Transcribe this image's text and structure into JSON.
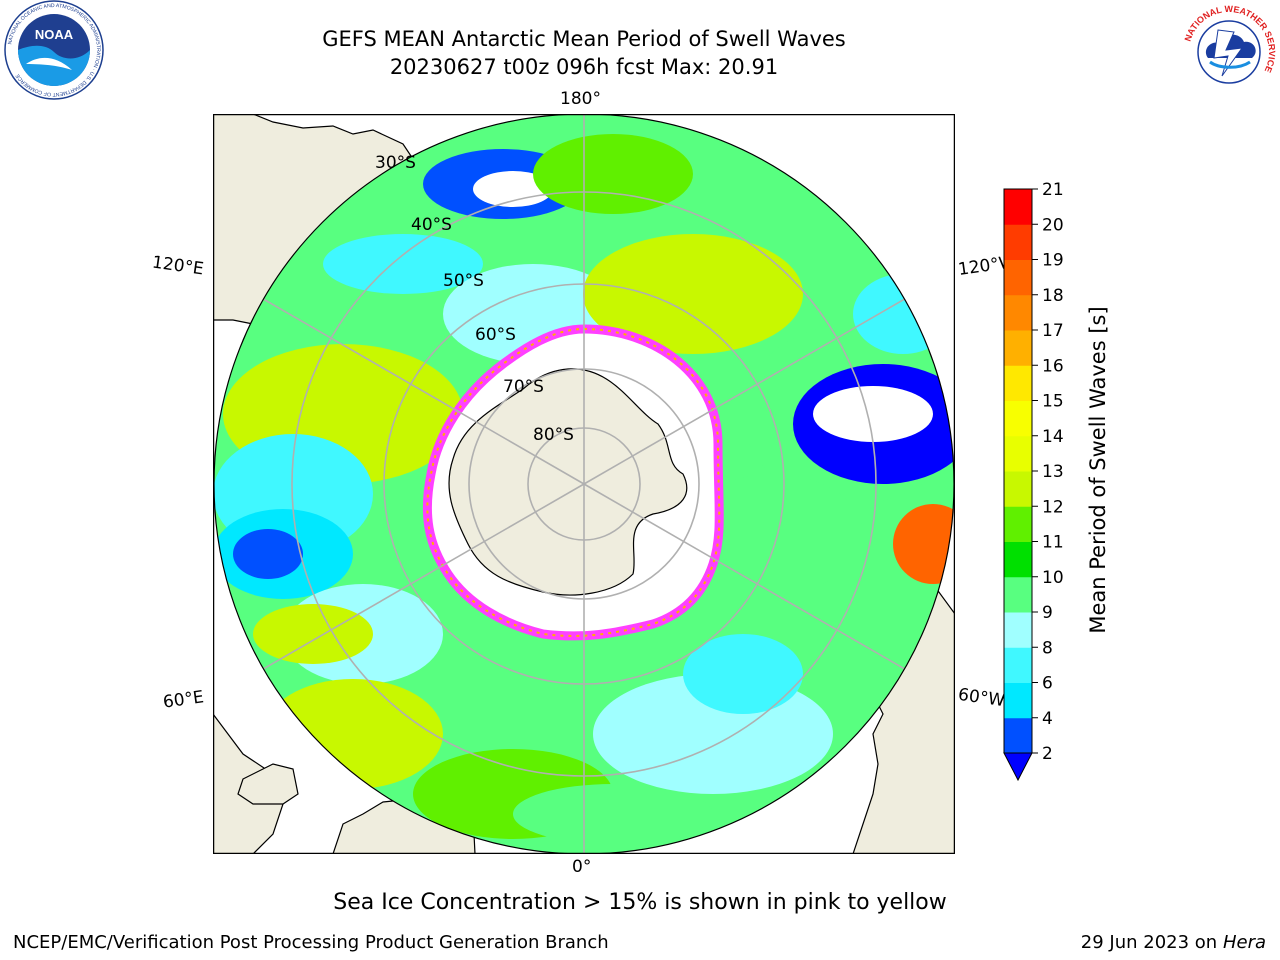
{
  "title_line1": "GEFS MEAN Antarctic Mean Period of Swell Waves",
  "title_line2": "20230627 t00z 096h fcst   Max: 20.91",
  "logos": {
    "noaa": {
      "text": "NOAA",
      "ring_text": "NATIONAL OCEANIC AND ATMOSPHERIC ADMINISTRATION · U.S. DEPARTMENT OF COMMERCE"
    },
    "nws": {
      "ring_text": "NATIONAL WEATHER SERVICE"
    }
  },
  "map": {
    "projection": "south-polar-stereographic",
    "longitude_labels": {
      "top": "180°",
      "bottom": "0°",
      "upper_left": "120°E",
      "upper_right": "120°W",
      "lower_left": "60°E",
      "lower_right": "60°W"
    },
    "latitude_labels": [
      "30°S",
      "40°S",
      "50°S",
      "60°S",
      "70°S",
      "80°S"
    ],
    "colors": {
      "land": "#efedde",
      "ocean_mid": "#5cff84",
      "grid": "#b0b0b0"
    }
  },
  "colorbar": {
    "label": "Mean Period of Swell Waves [s]",
    "ticks": [
      "2",
      "4",
      "6",
      "8",
      "9",
      "10",
      "11",
      "12",
      "13",
      "14",
      "15",
      "16",
      "17",
      "18",
      "19",
      "20",
      "21"
    ],
    "colors": [
      "#0050ff",
      "#00e8ff",
      "#40f8ff",
      "#a0ffff",
      "#58ff80",
      "#00e000",
      "#60f000",
      "#c8f800",
      "#e8ff00",
      "#f8ff00",
      "#ffe800",
      "#ffb000",
      "#ff8800",
      "#ff6400",
      "#ff3c00",
      "#ff0000"
    ],
    "under_color": "#0000ff"
  },
  "sea_ice_note": "Sea Ice Concentration > 15% is shown in pink to yellow",
  "footer_left": "NCEP/EMC/Verification Post Processing Product Generation Branch",
  "footer_right": {
    "date": "29 Jun 2023 on",
    "host": "Hera"
  }
}
